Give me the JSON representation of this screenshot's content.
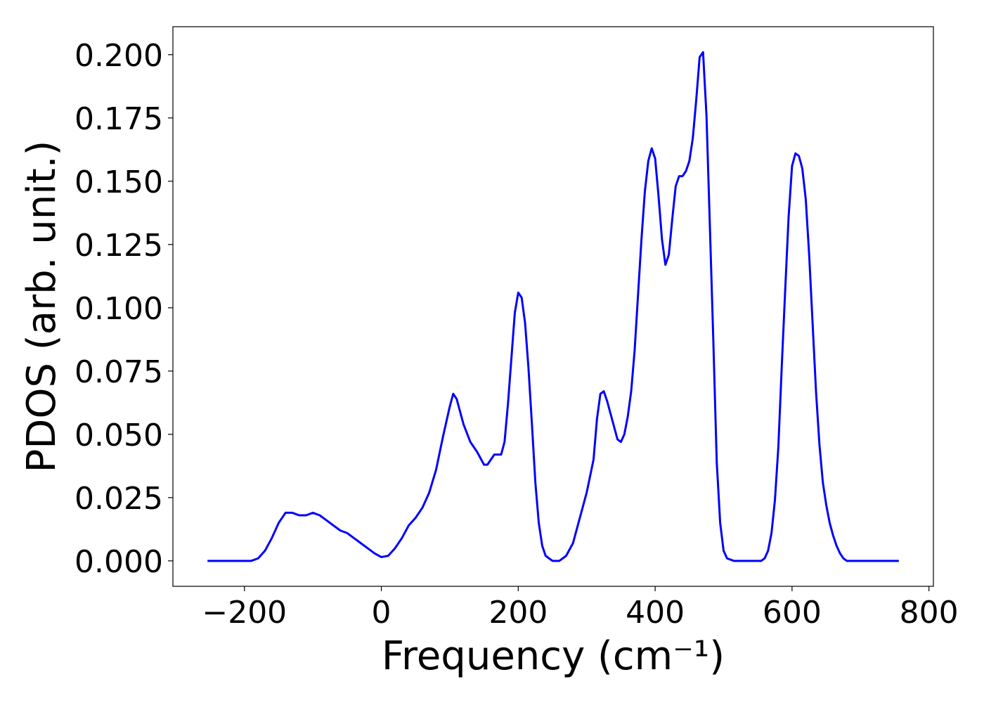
{
  "chart_data": {
    "type": "line",
    "xlabel": "Frequency (cm⁻¹)",
    "ylabel": "PDOS (arb. unit.)",
    "color": "#0000ff",
    "x": [
      -254,
      -190,
      -180,
      -170,
      -160,
      -150,
      -140,
      -130,
      -120,
      -110,
      -100,
      -90,
      -80,
      -70,
      -60,
      -50,
      -40,
      -30,
      -20,
      -10,
      0,
      10,
      20,
      30,
      40,
      50,
      60,
      70,
      80,
      90,
      100,
      105,
      110,
      120,
      130,
      140,
      150,
      155,
      165,
      175,
      180,
      185,
      190,
      195,
      200,
      205,
      210,
      215,
      220,
      225,
      230,
      235,
      240,
      250,
      260,
      270,
      280,
      290,
      300,
      310,
      315,
      320,
      325,
      330,
      340,
      345,
      350,
      355,
      360,
      365,
      370,
      375,
      380,
      385,
      390,
      395,
      400,
      405,
      410,
      415,
      420,
      425,
      430,
      435,
      440,
      445,
      450,
      455,
      460,
      465,
      470,
      475,
      480,
      485,
      490,
      495,
      500,
      505,
      515,
      555,
      560,
      565,
      570,
      575,
      580,
      585,
      590,
      595,
      600,
      605,
      610,
      615,
      620,
      625,
      630,
      635,
      640,
      645,
      650,
      655,
      660,
      665,
      670,
      675,
      680,
      756
    ],
    "values": [
      0,
      0,
      0.001,
      0.004,
      0.009,
      0.015,
      0.019,
      0.019,
      0.018,
      0.018,
      0.019,
      0.018,
      0.016,
      0.014,
      0.012,
      0.011,
      0.009,
      0.007,
      0.005,
      0.003,
      0.0015,
      0.002,
      0.005,
      0.009,
      0.014,
      0.017,
      0.021,
      0.027,
      0.036,
      0.049,
      0.061,
      0.066,
      0.064,
      0.054,
      0.047,
      0.043,
      0.038,
      0.038,
      0.042,
      0.042,
      0.047,
      0.062,
      0.08,
      0.098,
      0.106,
      0.104,
      0.094,
      0.076,
      0.054,
      0.031,
      0.015,
      0.006,
      0.002,
      0,
      0,
      0.002,
      0.007,
      0.017,
      0.027,
      0.04,
      0.056,
      0.066,
      0.067,
      0.063,
      0.053,
      0.048,
      0.047,
      0.05,
      0.057,
      0.067,
      0.083,
      0.105,
      0.127,
      0.146,
      0.158,
      0.163,
      0.159,
      0.144,
      0.127,
      0.117,
      0.121,
      0.135,
      0.148,
      0.152,
      0.152,
      0.154,
      0.158,
      0.167,
      0.182,
      0.199,
      0.201,
      0.176,
      0.132,
      0.087,
      0.039,
      0.015,
      0.004,
      0.001,
      0,
      0,
      0.001,
      0.004,
      0.011,
      0.024,
      0.045,
      0.077,
      0.107,
      0.136,
      0.156,
      0.161,
      0.16,
      0.155,
      0.143,
      0.121,
      0.094,
      0.067,
      0.046,
      0.031,
      0.022,
      0.015,
      0.01,
      0.006,
      0.003,
      0.001,
      0,
      0
    ],
    "xlim": [
      -304.5,
      806.5
    ],
    "ylim": [
      -0.01005,
      0.21105
    ],
    "xticks": [
      {
        "value": -200,
        "label": "−200"
      },
      0,
      200,
      400,
      600,
      800
    ],
    "yticks": [
      {
        "value": 0,
        "label": "0.000"
      },
      {
        "value": 0.025,
        "label": "0.025"
      },
      {
        "value": 0.05,
        "label": "0.050"
      },
      {
        "value": 0.075,
        "label": "0.075"
      },
      {
        "value": 0.1,
        "label": "0.100"
      },
      {
        "value": 0.125,
        "label": "0.125"
      },
      {
        "value": 0.15,
        "label": "0.150"
      },
      {
        "value": 0.175,
        "label": "0.175"
      },
      {
        "value": 0.2,
        "label": "0.200"
      }
    ]
  }
}
